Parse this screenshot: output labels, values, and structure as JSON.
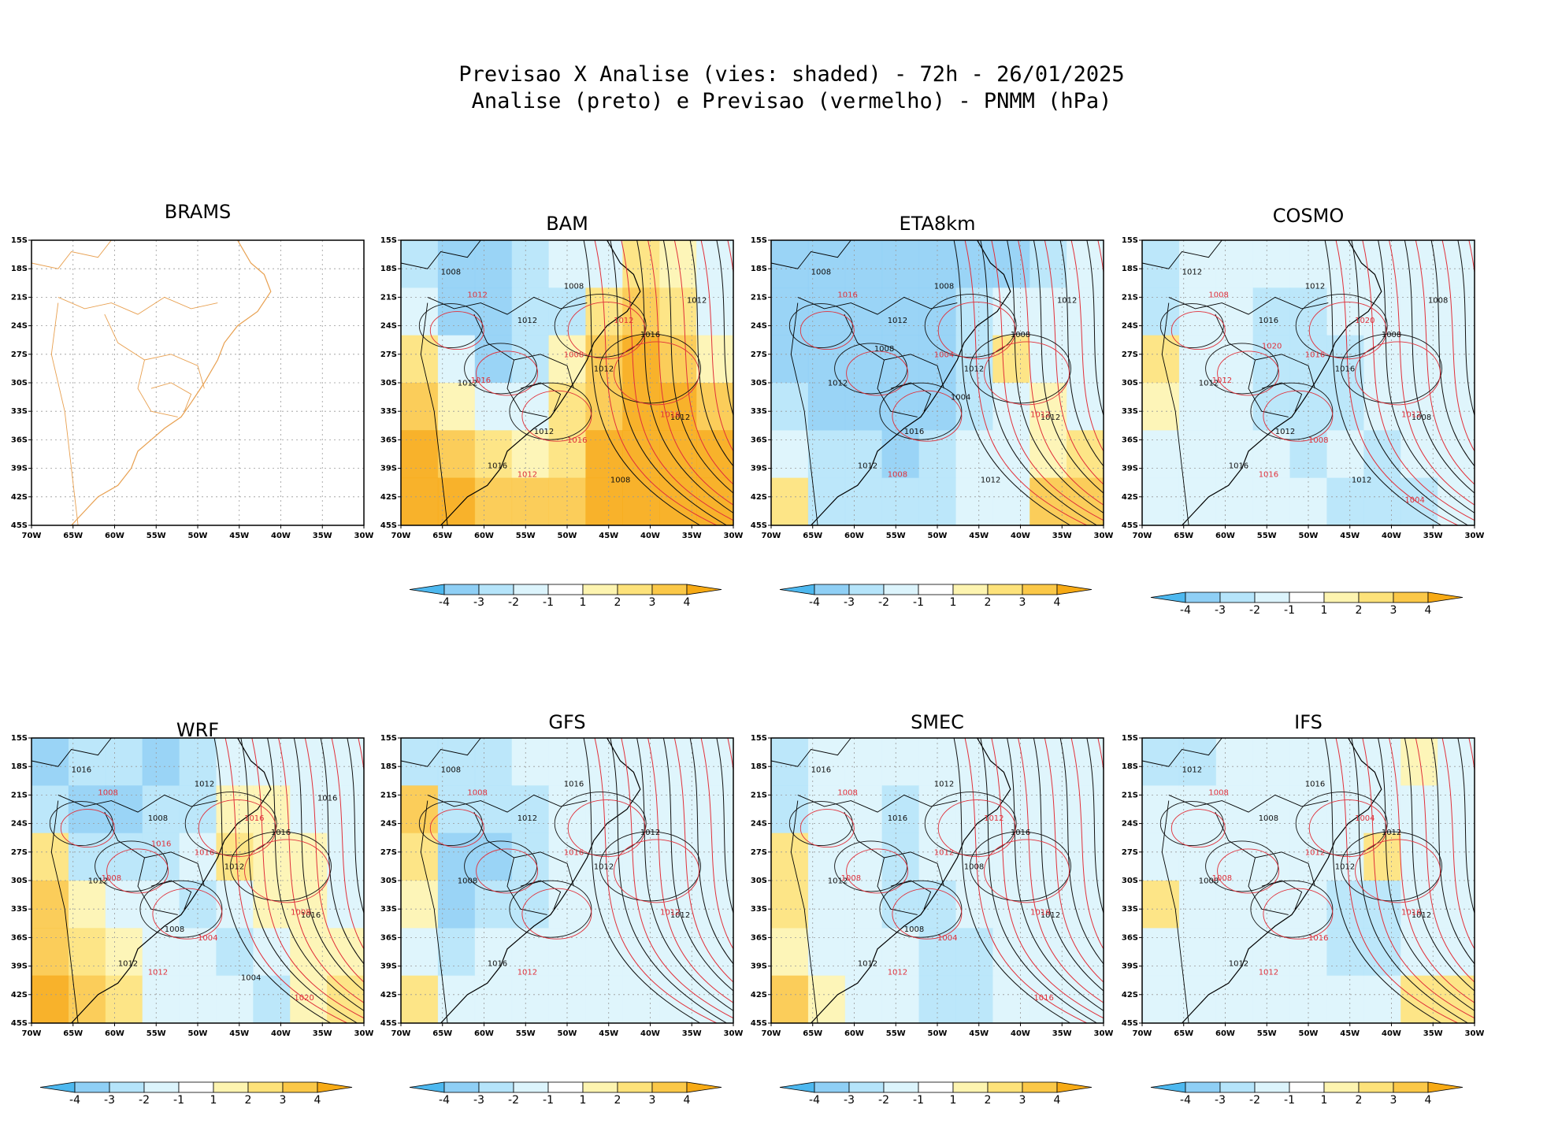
{
  "title": {
    "line1": "Previsao X Analise (vies: shaded) - 72h - 26/01/2025",
    "line2": "Analise (preto) e Previsao (vermelho) - PNMM (hPa)"
  },
  "axes": {
    "lat_labels": [
      "15S",
      "18S",
      "21S",
      "24S",
      "27S",
      "30S",
      "33S",
      "36S",
      "39S",
      "42S",
      "45S"
    ],
    "lon_labels": [
      "70W",
      "65W",
      "60W",
      "55W",
      "50W",
      "45W",
      "40W",
      "35W",
      "30W"
    ]
  },
  "colorbar": {
    "labels": [
      "-4",
      "-3",
      "-2",
      "-1",
      "1",
      "2",
      "3",
      "4"
    ],
    "colors": [
      "#4db8ef",
      "#8fcff5",
      "#b5e4fa",
      "#dcf4fc",
      "#ffffff",
      "#fdf4b0",
      "#fde27a",
      "#fbc848",
      "#f7aa14"
    ]
  },
  "colors": {
    "analysis_contour": "#111111",
    "forecast_contour": "#e0303a",
    "coastline_brams": "#e8a050"
  },
  "panels": [
    {
      "name": "BRAMS",
      "empty": true,
      "colorbar": false,
      "bias": [],
      "labels_black": [],
      "labels_red": []
    },
    {
      "name": "BAM",
      "colorbar": true,
      "bias": [
        [
          -2,
          -3,
          -3,
          -2,
          -1,
          -1,
          2,
          1,
          -1
        ],
        [
          -1,
          -3,
          -3,
          -2,
          -2,
          2,
          3,
          2,
          -1
        ],
        [
          2,
          -1,
          -3,
          -2,
          1,
          3,
          4,
          3,
          1
        ],
        [
          3,
          1,
          -1,
          -1,
          2,
          3,
          4,
          4,
          3
        ],
        [
          4,
          3,
          2,
          1,
          2,
          4,
          4,
          4,
          4
        ],
        [
          4,
          4,
          3,
          3,
          3,
          4,
          4,
          4,
          4
        ]
      ],
      "labels_black": [
        "1008",
        "1012",
        "1012",
        "1012",
        "1016",
        "1008",
        "1016",
        "1012",
        "1012",
        "1008",
        "1012"
      ],
      "labels_red": [
        "1012",
        "1008",
        "1016",
        "1012",
        "1012",
        "1016",
        "1016"
      ]
    },
    {
      "name": "ETA8km",
      "colorbar": true,
      "bias": [
        [
          -3,
          -3,
          -3,
          -3,
          -3,
          -3,
          -3,
          -2,
          -1
        ],
        [
          -3,
          -3,
          -3,
          -3,
          -3,
          -2,
          -1,
          -1,
          -1
        ],
        [
          -3,
          -3,
          -3,
          -3,
          -3,
          -2,
          2,
          -1,
          -1
        ],
        [
          -2,
          -3,
          -3,
          -3,
          -3,
          -2,
          -1,
          1,
          -1
        ],
        [
          -1,
          -2,
          -2,
          -3,
          -2,
          -1,
          -1,
          1,
          2
        ],
        [
          2,
          -2,
          -2,
          -2,
          -2,
          -1,
          -1,
          3,
          3
        ]
      ],
      "labels_black": [
        "1008",
        "1012",
        "1012",
        "1012",
        "1012",
        "1008",
        "1008",
        "1012",
        "1016",
        "1012",
        "1012",
        "1008",
        "1004"
      ],
      "labels_red": [
        "1016",
        "1004",
        "1012",
        "1008"
      ]
    },
    {
      "name": "COSMO",
      "colorbar": true,
      "bias": [
        [
          -2,
          -1,
          -1,
          -1,
          -1,
          -1,
          -1,
          -1,
          -1
        ],
        [
          -2,
          -1,
          -1,
          -2,
          -2,
          -1,
          -1,
          -1,
          -1
        ],
        [
          2,
          -1,
          -1,
          -2,
          -2,
          -2,
          -1,
          -1,
          -1
        ],
        [
          1,
          -1,
          -1,
          -2,
          -2,
          -2,
          -1,
          -1,
          -1
        ],
        [
          -1,
          -1,
          -1,
          -1,
          -2,
          -1,
          -2,
          -1,
          -1
        ],
        [
          -1,
          -1,
          -1,
          -1,
          -1,
          -2,
          -2,
          -2,
          -1
        ]
      ],
      "labels_black": [
        "1012",
        "1016",
        "1016",
        "1008",
        "1016",
        "1012",
        "1008",
        "1012",
        "1012",
        "1012",
        "1008"
      ],
      "labels_red": [
        "1008",
        "1016",
        "1012",
        "1016",
        "1020",
        "1012",
        "1008",
        "1004",
        "1020"
      ]
    },
    {
      "name": "WRF",
      "colorbar": true,
      "bias": [
        [
          -3,
          -2,
          -2,
          -3,
          -2,
          -1,
          -1,
          -1,
          -1
        ],
        [
          -2,
          -3,
          -3,
          -2,
          -2,
          1,
          1,
          -1,
          -1
        ],
        [
          2,
          -2,
          -2,
          -2,
          -1,
          2,
          1,
          1,
          -1
        ],
        [
          3,
          1,
          -1,
          -1,
          -2,
          -1,
          1,
          1,
          -1
        ],
        [
          3,
          2,
          1,
          -1,
          -1,
          -2,
          -1,
          1,
          1
        ],
        [
          4,
          3,
          2,
          -1,
          -1,
          -1,
          -2,
          1,
          2
        ]
      ],
      "labels_black": [
        "1016",
        "1008",
        "1012",
        "1016",
        "1012",
        "1012",
        "1016",
        "1012",
        "1008",
        "1004",
        "1016"
      ],
      "labels_red": [
        "1008",
        "1016",
        "1008",
        "1012",
        "1016",
        "1008",
        "1004",
        "1020",
        "1016"
      ]
    },
    {
      "name": "GFS",
      "colorbar": true,
      "bias": [
        [
          -2,
          -2,
          -2,
          -1,
          -1,
          -1,
          -1,
          -1,
          -1
        ],
        [
          3,
          -2,
          -2,
          -2,
          -1,
          -1,
          -1,
          -1,
          -1
        ],
        [
          2,
          -3,
          -3,
          -2,
          -1,
          -1,
          -1,
          -1,
          -1
        ],
        [
          1,
          -3,
          -2,
          -2,
          -1,
          -1,
          -1,
          -1,
          -1
        ],
        [
          -1,
          -2,
          -1,
          -1,
          -1,
          -1,
          -1,
          -1,
          -1
        ],
        [
          2,
          -1,
          -1,
          -1,
          -1,
          -1,
          -1,
          -1,
          -1
        ]
      ],
      "labels_black": [
        "1008",
        "1012",
        "1012",
        "1012",
        "1016",
        "1016",
        "1012",
        "1008"
      ],
      "labels_red": [
        "1008",
        "1016",
        "1012",
        "1012"
      ]
    },
    {
      "name": "SMEC",
      "colorbar": true,
      "bias": [
        [
          -2,
          -1,
          -1,
          -1,
          -1,
          -1,
          -1,
          -1,
          -1
        ],
        [
          -2,
          -1,
          -1,
          -2,
          -1,
          -1,
          -1,
          -1,
          -1
        ],
        [
          2,
          -1,
          -1,
          -2,
          -1,
          -1,
          -1,
          -1,
          -1
        ],
        [
          2,
          -1,
          -1,
          -2,
          -2,
          -1,
          -1,
          -1,
          -1
        ],
        [
          1,
          -1,
          -1,
          -1,
          -2,
          -2,
          -1,
          -1,
          -1
        ],
        [
          3,
          1,
          -1,
          -1,
          -2,
          -2,
          -1,
          -1,
          -1
        ]
      ],
      "labels_black": [
        "1016",
        "1016",
        "1008",
        "1012",
        "1012",
        "1012",
        "1016",
        "1012",
        "1008"
      ],
      "labels_red": [
        "1008",
        "1012",
        "1016",
        "1012",
        "1012",
        "1008",
        "1004",
        "1016"
      ]
    },
    {
      "name": "IFS",
      "colorbar": true,
      "bias": [
        [
          -2,
          -2,
          -1,
          -1,
          -1,
          -1,
          -1,
          1,
          -1
        ],
        [
          -1,
          -1,
          -1,
          -1,
          -1,
          -1,
          -1,
          -1,
          -1
        ],
        [
          -1,
          -1,
          -1,
          -1,
          -1,
          -1,
          2,
          -1,
          -1
        ],
        [
          2,
          -1,
          -1,
          -1,
          -1,
          -2,
          -2,
          -1,
          -1
        ],
        [
          -1,
          -1,
          -1,
          -1,
          -1,
          -2,
          -2,
          -1,
          -1
        ],
        [
          -1,
          -1,
          -1,
          -1,
          -1,
          -1,
          -1,
          2,
          2
        ]
      ],
      "labels_black": [
        "1012",
        "1008",
        "1012",
        "1012",
        "1012",
        "1016",
        "1012",
        "1008"
      ],
      "labels_red": [
        "1008",
        "1012",
        "1016",
        "1012",
        "1004",
        "1008",
        "1016"
      ]
    }
  ]
}
